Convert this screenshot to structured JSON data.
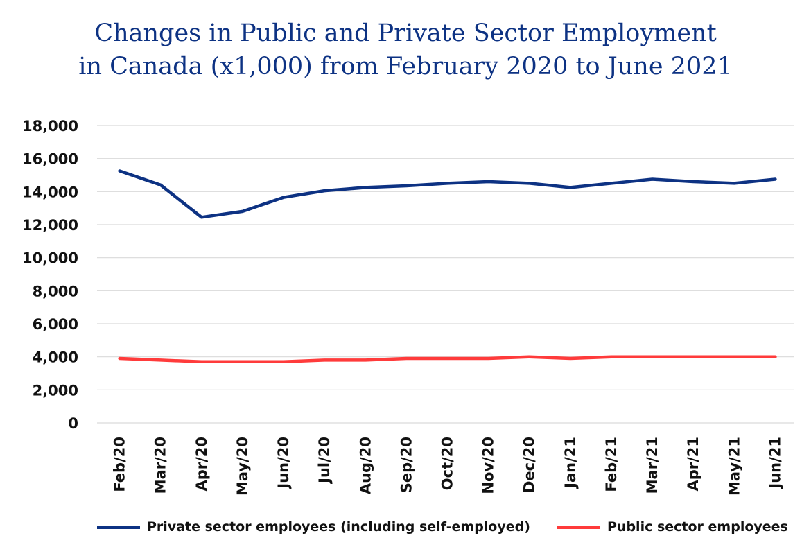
{
  "chart_data": {
    "type": "line",
    "title": "Changes in Public and Private Sector Employment in Canada (x1,000) from February 2020 to June 2021",
    "title_lines": [
      "Changes in Public and Private Sector Employment",
      "in Canada (x1,000) from February 2020 to June 2021"
    ],
    "xlabel": "",
    "ylabel": "",
    "ylim": [
      0,
      18000
    ],
    "yticks": [
      "0",
      "2,000",
      "4,000",
      "6,000",
      "8,000",
      "10,000",
      "12,000",
      "14,000",
      "16,000",
      "18,000"
    ],
    "grid": "horizontal",
    "legend_position": "bottom",
    "categories": [
      "Feb/20",
      "Mar/20",
      "Apr/20",
      "May/20",
      "Jun/20",
      "Jul/20",
      "Aug/20",
      "Sep/20",
      "Oct/20",
      "Nov/20",
      "Dec/20",
      "Jan/21",
      "Feb/21",
      "Mar/21",
      "Apr/21",
      "May/21",
      "Jun/21"
    ],
    "series": [
      {
        "name": "Private sector employees (including self-employed)",
        "color": "#0d3283",
        "values": [
          15250,
          14400,
          12450,
          12800,
          13650,
          14050,
          14250,
          14350,
          14500,
          14600,
          14500,
          14250,
          14500,
          14750,
          14600,
          14500,
          14750
        ]
      },
      {
        "name": "Public sector employees",
        "color": "#ff3b3b",
        "values": [
          3900,
          3800,
          3700,
          3700,
          3700,
          3800,
          3800,
          3900,
          3900,
          3900,
          4000,
          3900,
          4000,
          4000,
          4000,
          4000,
          4000
        ]
      }
    ]
  },
  "colors": {
    "title": "#0d3283",
    "grid": "#d9d9d9",
    "text": "#111111"
  }
}
